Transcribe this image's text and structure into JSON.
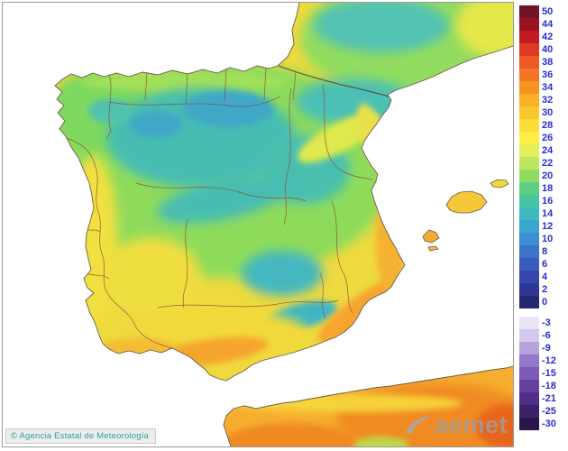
{
  "attribution": {
    "text": "© Agencia Estatal de Meteorología"
  },
  "watermark": {
    "text": "aemet"
  },
  "legend": {
    "label_color": "#2b2bd4",
    "sections": [
      {
        "name": "celsius-positive",
        "entries": [
          {
            "value": "50",
            "color": "#70142a"
          },
          {
            "value": "44",
            "color": "#9c1024"
          },
          {
            "value": "42",
            "color": "#c21c22"
          },
          {
            "value": "40",
            "color": "#dd3a24"
          },
          {
            "value": "38",
            "color": "#ee5a25"
          },
          {
            "value": "36",
            "color": "#f47523"
          },
          {
            "value": "34",
            "color": "#f89323"
          },
          {
            "value": "32",
            "color": "#fbb028"
          },
          {
            "value": "30",
            "color": "#fcc72e"
          },
          {
            "value": "28",
            "color": "#fddc37"
          },
          {
            "value": "26",
            "color": "#fdee44"
          },
          {
            "value": "24",
            "color": "#e4f058"
          },
          {
            "value": "22",
            "color": "#bde75f"
          },
          {
            "value": "20",
            "color": "#8edd62"
          },
          {
            "value": "18",
            "color": "#5ecf82"
          },
          {
            "value": "16",
            "color": "#46c4a4"
          },
          {
            "value": "14",
            "color": "#3db9c1"
          },
          {
            "value": "12",
            "color": "#3aa5cd"
          },
          {
            "value": "10",
            "color": "#3d8ed2"
          },
          {
            "value": "8",
            "color": "#3d74cb"
          },
          {
            "value": "6",
            "color": "#3c5cbd"
          },
          {
            "value": "4",
            "color": "#3646ac"
          },
          {
            "value": "2",
            "color": "#2e3795"
          },
          {
            "value": "0",
            "color": "#25296e"
          }
        ]
      },
      {
        "name": "celsius-negative",
        "entries": [
          {
            "value": "-3",
            "color": "#eae6f6"
          },
          {
            "value": "-6",
            "color": "#d4c9ec"
          },
          {
            "value": "-9",
            "color": "#b5a3dc"
          },
          {
            "value": "-12",
            "color": "#9379c7"
          },
          {
            "value": "-15",
            "color": "#7b5bb5"
          },
          {
            "value": "-18",
            "color": "#64419f"
          },
          {
            "value": "-21",
            "color": "#503087"
          },
          {
            "value": "-25",
            "color": "#3c2268"
          },
          {
            "value": "-30",
            "color": "#2a164a"
          }
        ]
      }
    ]
  },
  "map": {
    "sea_color": "#ffffff",
    "coast_color": "#6e5b46",
    "province_border_color": "#8a4436",
    "national_border_color": "#5f3a28"
  }
}
